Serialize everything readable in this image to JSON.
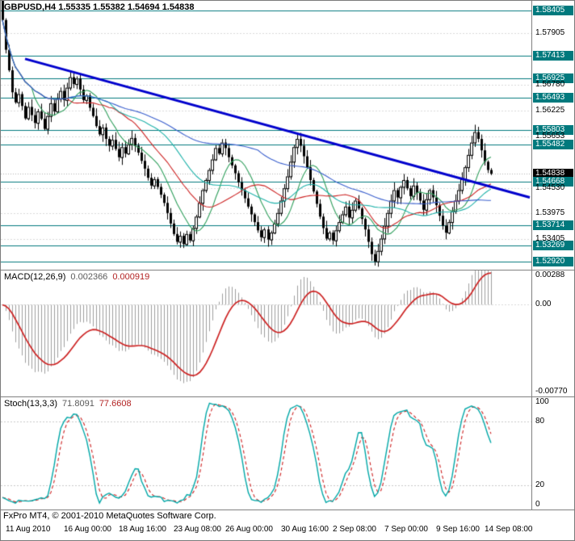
{
  "header": {
    "ohlc_line": "GBPUSD,H4 1.55335 1.55382 1.54694 1.54838"
  },
  "macd_panel": {
    "name": "MACD(12,26,9)",
    "main_value": "0.002366",
    "signal_value": "0.000919"
  },
  "stoch_panel": {
    "name": "Stoch(13,3,3)",
    "k_value": "71.8091",
    "d_value": "77.6608"
  },
  "footer": {
    "credit": "FxPro MT4, © 2001-2010 MetaQuotes Software Corp."
  },
  "axes": {
    "price": [
      {
        "text": "1.58405",
        "type": "level"
      },
      {
        "text": "1.57905",
        "type": "grid"
      },
      {
        "text": "1.57413",
        "type": "level"
      },
      {
        "text": "1.56925",
        "type": "level"
      },
      {
        "text": "1.56780",
        "type": "grid"
      },
      {
        "text": "1.56493",
        "type": "level"
      },
      {
        "text": "1.56225",
        "type": "grid"
      },
      {
        "text": "1.55803",
        "type": "level"
      },
      {
        "text": "1.55653",
        "type": "grid"
      },
      {
        "text": "1.55482",
        "type": "level"
      },
      {
        "text": "1.54838",
        "type": "current"
      },
      {
        "text": "1.54668",
        "type": "level"
      },
      {
        "text": "1.54530",
        "type": "grid"
      },
      {
        "text": "1.53975",
        "type": "grid"
      },
      {
        "text": "1.53714",
        "type": "level"
      },
      {
        "text": "1.53405",
        "type": "grid"
      },
      {
        "text": "1.53269",
        "type": "level"
      },
      {
        "text": "1.52920",
        "type": "level"
      }
    ],
    "macd": [
      {
        "text": "0.00288"
      },
      {
        "text": "0.00"
      },
      {
        "text": "-0.00770"
      }
    ],
    "stoch": [
      {
        "text": "100"
      },
      {
        "text": "80"
      },
      {
        "text": "20"
      },
      {
        "text": "0"
      }
    ],
    "time": [
      {
        "text": "11 Aug 2010",
        "bar": 1
      },
      {
        "text": "16 Aug 00:00",
        "bar": 19
      },
      {
        "text": "18 Aug 16:00",
        "bar": 36
      },
      {
        "text": "23 Aug 08:00",
        "bar": 53
      },
      {
        "text": "26 Aug 00:00",
        "bar": 69
      },
      {
        "text": "30 Aug 16:00",
        "bar": 86
      },
      {
        "text": "2 Sep 08:00",
        "bar": 102
      },
      {
        "text": "7 Sep 00:00",
        "bar": 118
      },
      {
        "text": "9 Sep 16:00",
        "bar": 134
      },
      {
        "text": "14 Sep 08:00",
        "bar": 149
      }
    ]
  },
  "chart_data": {
    "type": "candlestick",
    "symbol": "GBPUSD",
    "timeframe": "H4",
    "current_bar": {
      "open": 1.55335,
      "high": 1.55382,
      "low": 1.54694,
      "close": 1.54838
    },
    "price_range": {
      "min": 1.5274,
      "max": 1.5862
    },
    "total_slots": 164,
    "first_open": 1.588,
    "closes": [
      1.582,
      1.5755,
      1.571,
      1.5662,
      1.564,
      1.5658,
      1.5632,
      1.5605,
      1.563,
      1.5612,
      1.5595,
      1.562,
      1.5604,
      1.5582,
      1.561,
      1.5638,
      1.562,
      1.5648,
      1.5665,
      1.5645,
      1.5672,
      1.5695,
      1.568,
      1.5692,
      1.5668,
      1.5645,
      1.5655,
      1.5628,
      1.561,
      1.5588,
      1.557,
      1.5585,
      1.556,
      1.5545,
      1.5558,
      1.5538,
      1.552,
      1.5542,
      1.5528,
      1.5548,
      1.5562,
      1.5545,
      1.553,
      1.5512,
      1.5495,
      1.5475,
      1.5458,
      1.5472,
      1.5455,
      1.5438,
      1.542,
      1.5398,
      1.5375,
      1.5352,
      1.5335,
      1.5348,
      1.533,
      1.5352,
      1.5338,
      1.5365,
      1.539,
      1.542,
      1.5448,
      1.547,
      1.5492,
      1.5515,
      1.554,
      1.5528,
      1.5552,
      1.554,
      1.552,
      1.5502,
      1.5485,
      1.5465,
      1.5448,
      1.543,
      1.5412,
      1.5395,
      1.5378,
      1.536,
      1.5345,
      1.5362,
      1.534,
      1.5355,
      1.5375,
      1.5398,
      1.5425,
      1.5452,
      1.5478,
      1.551,
      1.5542,
      1.556,
      1.5545,
      1.5522,
      1.5498,
      1.547,
      1.5445,
      1.5418,
      1.539,
      1.5365,
      1.5342,
      1.5355,
      1.5338,
      1.536,
      1.5378,
      1.5395,
      1.5412,
      1.5388,
      1.5405,
      1.5425,
      1.5408,
      1.5385,
      1.5362,
      1.5335,
      1.5308,
      1.5292,
      1.5315,
      1.5342,
      1.537,
      1.5398,
      1.5425,
      1.5448,
      1.5432,
      1.5455,
      1.547,
      1.5452,
      1.5435,
      1.5458,
      1.5442,
      1.5425,
      1.5405,
      1.5428,
      1.5448,
      1.5432,
      1.5415,
      1.5392,
      1.537,
      1.5355,
      1.5378,
      1.5402,
      1.5425,
      1.5448,
      1.5472,
      1.5498,
      1.5525,
      1.5552,
      1.5575,
      1.556,
      1.5535,
      1.551,
      1.5492,
      1.5484
    ],
    "horizontal_levels": [
      1.58405,
      1.57413,
      1.56925,
      1.56493,
      1.55803,
      1.55482,
      1.54668,
      1.53714,
      1.53269,
      1.5292
    ],
    "grid_levels": [
      1.57905,
      1.5678,
      1.56225,
      1.55653,
      1.5453,
      1.53975,
      1.53405
    ],
    "current_price_line": 1.54838,
    "trendline": {
      "from": {
        "bar": 7,
        "price": 1.5735
      },
      "to": {
        "bar": 163,
        "price": 1.5432
      },
      "color": "#0000cc"
    },
    "moving_averages": [
      {
        "period": 10,
        "color": "#2e9e5b"
      },
      {
        "period": 21,
        "color": "#cc2222"
      },
      {
        "period": 34,
        "color": "#20b2aa"
      },
      {
        "period": 80,
        "color": "#3a5fcd"
      }
    ],
    "indicators": {
      "macd": {
        "name": "MACD",
        "fast": 12,
        "slow": 26,
        "signal_period": 9,
        "current_main": 0.002366,
        "current_signal": 0.000919,
        "range": {
          "min": -0.0077,
          "max": 0.00288
        },
        "histogram_color": "#9e9e9e",
        "signal_color": "#cc2222"
      },
      "stoch": {
        "name": "Stochastic",
        "k_period": 13,
        "d_period": 3,
        "slowing": 3,
        "current_k": 71.8091,
        "current_d": 77.6608,
        "range": {
          "min": 0,
          "max": 100
        },
        "levels": [
          80,
          20
        ],
        "k_color": "#00a7a7",
        "d_color": "#cc2222"
      }
    }
  }
}
